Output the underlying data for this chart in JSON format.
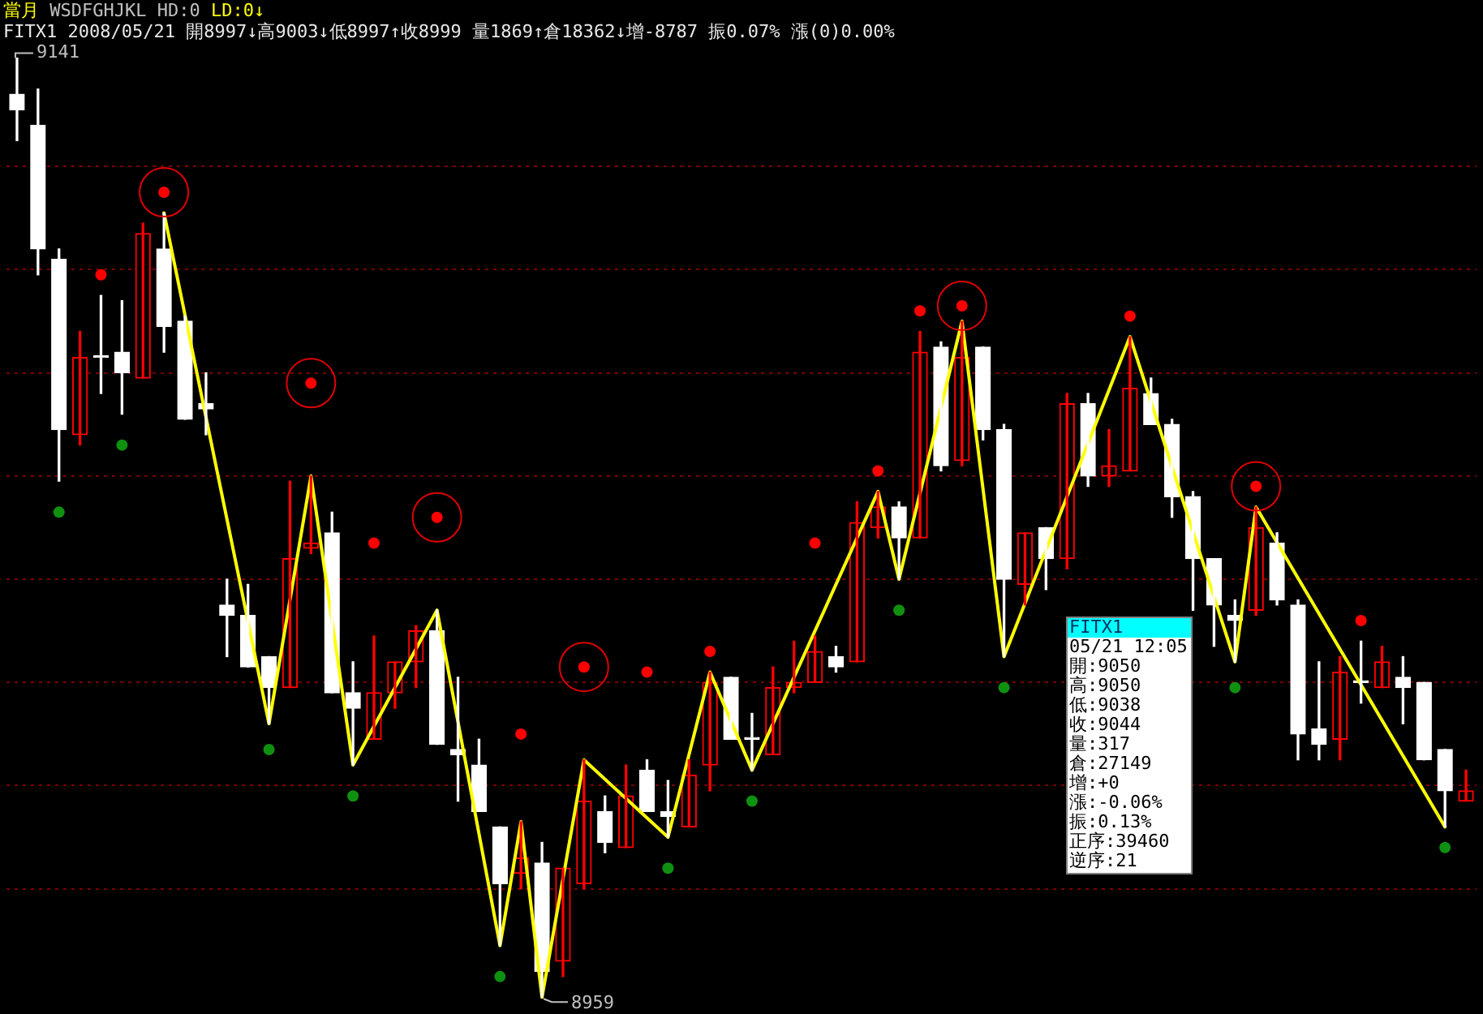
{
  "chart_data": {
    "type": "candlestick",
    "title": "當月 WSDFGHJKL HD:0 LD:0↓",
    "subtitle": "FITX1 2008/05/21 開8997↓高9003↓低8997↑收8999 量1869↑倉18362↓增-8787 振0.07% 漲(0)0.00%",
    "categories": [
      null,
      null,
      null,
      null,
      null,
      null,
      null,
      null,
      null,
      null,
      null,
      null,
      null,
      null,
      null,
      null,
      null,
      null,
      null,
      null,
      null,
      null,
      null,
      null,
      null,
      null,
      null,
      null,
      null,
      null,
      null,
      null,
      null,
      null,
      null,
      null,
      null,
      null,
      null,
      null,
      null,
      null,
      null,
      null,
      null,
      null,
      null,
      null,
      null,
      null,
      null,
      null,
      null,
      null,
      null,
      null,
      null,
      null,
      null,
      null,
      null,
      null,
      null,
      null,
      null,
      null,
      null,
      null,
      null,
      null
    ],
    "ohlc": [
      [
        9134,
        9141,
        9125,
        9131
      ],
      [
        9128,
        9135,
        9099,
        9104
      ],
      [
        9102,
        9104,
        9059,
        9069
      ],
      [
        9068,
        9088,
        9066,
        9083
      ],
      [
        9083,
        9095,
        9076,
        9083
      ],
      [
        9084,
        9094,
        9072,
        9080
      ],
      [
        9079,
        9109,
        9079,
        9107
      ],
      [
        9104,
        9111,
        9084,
        9089
      ],
      [
        9090,
        9091,
        9071,
        9071
      ],
      [
        9074,
        9080,
        9068,
        9073
      ],
      [
        9035,
        9040,
        9025,
        9033
      ],
      [
        9033,
        9039,
        9023,
        9023
      ],
      [
        9025,
        9025,
        9012,
        9019
      ],
      [
        9019,
        9059,
        9019,
        9044
      ],
      [
        9046,
        9060,
        9045,
        9047
      ],
      [
        9049,
        9053,
        9018,
        9018
      ],
      [
        9018,
        9024,
        9004,
        9015
      ],
      [
        9009,
        9029,
        9009,
        9018
      ],
      [
        9018,
        9024,
        9015,
        9024
      ],
      [
        9024,
        9031,
        9019,
        9030
      ],
      [
        9030,
        9034,
        9008,
        9008
      ],
      [
        9007,
        9021,
        8997,
        9006
      ],
      [
        9004,
        9009,
        8995,
        8995
      ],
      [
        8992,
        8992,
        8969,
        8981
      ],
      [
        8983,
        8993,
        8980,
        8986
      ],
      [
        8985,
        8989,
        8959,
        8964
      ],
      [
        8966,
        8984,
        8963,
        8984
      ],
      [
        8981,
        9005,
        8980,
        8997
      ],
      [
        8995,
        8998,
        8987,
        8989
      ],
      [
        8988,
        9004,
        8988,
        8998
      ],
      [
        9003,
        9005,
        8995,
        8995
      ],
      [
        8995,
        9001,
        8990,
        8994
      ],
      [
        8992,
        9005,
        8992,
        9002
      ],
      [
        9004,
        9022,
        8999,
        9020
      ],
      [
        9021,
        9021,
        9009,
        9009
      ],
      [
        9009,
        9014,
        9003,
        9009
      ],
      [
        9006,
        9023,
        9006,
        9019
      ],
      [
        9019,
        9028,
        9018,
        9020
      ],
      [
        9020,
        9029,
        9020,
        9026
      ],
      [
        9025,
        9027,
        9022,
        9023
      ],
      [
        9024,
        9055,
        9024,
        9051
      ],
      [
        9050,
        9057,
        9048,
        9054
      ],
      [
        9054,
        9055,
        9040,
        9048
      ],
      [
        9048,
        9088,
        9048,
        9084
      ],
      [
        9085,
        9086,
        9061,
        9062
      ],
      [
        9063,
        9090,
        9062,
        9083
      ],
      [
        9085,
        9085,
        9067,
        9069
      ],
      [
        9069,
        9070,
        9025,
        9040
      ],
      [
        9039,
        9049,
        9035,
        9049
      ],
      [
        9050,
        9050,
        9038,
        9044
      ],
      [
        9044,
        9076,
        9042,
        9074
      ],
      [
        9074,
        9076,
        9058,
        9060
      ],
      [
        9060,
        9069,
        9058,
        9062
      ],
      [
        9061,
        9087,
        9061,
        9077
      ],
      [
        9076,
        9079,
        9070,
        9070
      ],
      [
        9070,
        9071,
        9052,
        9056
      ],
      [
        9056,
        9057,
        9034,
        9044
      ],
      [
        9044,
        9044,
        9027,
        9035
      ],
      [
        9033,
        9036,
        9024,
        9032
      ],
      [
        9034,
        9054,
        9033,
        9050
      ],
      [
        9047,
        9049,
        9035,
        9036
      ],
      [
        9035,
        9036,
        9005,
        9010
      ],
      [
        9011,
        9024,
        9005,
        9008
      ],
      [
        9009,
        9025,
        9005,
        9022
      ],
      [
        9020,
        9028,
        9016,
        9020
      ],
      [
        9019,
        9027,
        9019,
        9024
      ],
      [
        9021,
        9025,
        9012,
        9019
      ],
      [
        9020,
        9020,
        9005,
        9005
      ],
      [
        9007,
        9007,
        8992,
        8999
      ],
      [
        8997,
        9003,
        8997,
        8999
      ]
    ],
    "series": [
      {
        "type": "line",
        "color": "#ffff00",
        "values": [
          null,
          null,
          null,
          null,
          null,
          null,
          null,
          9111,
          null,
          null,
          null,
          null,
          9012,
          null,
          9060,
          null,
          9004,
          null,
          null,
          null,
          9034,
          null,
          null,
          8969,
          8993,
          8959,
          null,
          9005,
          null,
          null,
          null,
          8990,
          null,
          9022,
          null,
          9003,
          null,
          null,
          null,
          null,
          null,
          9057,
          9040,
          null,
          null,
          9090,
          null,
          9025,
          null,
          null,
          null,
          null,
          null,
          9087,
          null,
          null,
          null,
          null,
          9024,
          9054,
          null,
          null,
          null,
          null,
          null,
          null,
          null,
          null,
          8992,
          null
        ]
      },
      {
        "type": "scatter",
        "color": "#ff0000",
        "marker": "circle",
        "values": [
          null,
          null,
          null,
          null,
          9099,
          null,
          null,
          9115,
          null,
          null,
          null,
          null,
          null,
          null,
          9078,
          null,
          null,
          9047,
          null,
          null,
          9052,
          null,
          null,
          null,
          9010,
          null,
          null,
          9023,
          null,
          null,
          9022,
          null,
          null,
          9026,
          null,
          null,
          null,
          null,
          9047,
          null,
          null,
          9061,
          null,
          9092,
          null,
          9093,
          null,
          null,
          null,
          null,
          null,
          null,
          null,
          9091,
          null,
          null,
          null,
          null,
          null,
          9058,
          null,
          null,
          null,
          null,
          9032,
          null,
          null,
          null,
          null,
          null
        ]
      },
      {
        "type": "scatter",
        "color": "#109010",
        "marker": "circle",
        "values": [
          null,
          null,
          9053,
          null,
          null,
          9066,
          null,
          null,
          null,
          null,
          null,
          null,
          9007,
          null,
          null,
          null,
          8998,
          null,
          null,
          null,
          null,
          null,
          null,
          8963,
          null,
          null,
          null,
          null,
          null,
          null,
          null,
          8984,
          null,
          null,
          null,
          8997,
          null,
          null,
          null,
          null,
          null,
          null,
          9034,
          null,
          null,
          null,
          null,
          9019,
          null,
          null,
          null,
          null,
          null,
          null,
          null,
          null,
          null,
          null,
          9019,
          null,
          null,
          null,
          null,
          null,
          null,
          null,
          null,
          null,
          8988,
          null
        ]
      },
      {
        "type": "bubble",
        "color": "#e00000",
        "values": [
          null,
          null,
          null,
          null,
          null,
          null,
          null,
          9115,
          null,
          null,
          null,
          null,
          null,
          null,
          9078,
          null,
          null,
          null,
          null,
          null,
          9052,
          null,
          null,
          null,
          null,
          null,
          null,
          9023,
          null,
          null,
          null,
          null,
          null,
          null,
          null,
          null,
          null,
          null,
          null,
          null,
          null,
          null,
          null,
          null,
          null,
          9093,
          null,
          null,
          null,
          null,
          null,
          null,
          null,
          null,
          null,
          null,
          null,
          null,
          null,
          9058,
          null,
          null,
          null,
          null,
          null,
          null,
          null,
          null,
          null,
          null
        ],
        "sizes": [
          null,
          null,
          null,
          null,
          null,
          null,
          null,
          1,
          null,
          null,
          null,
          null,
          null,
          null,
          1,
          null,
          null,
          null,
          null,
          null,
          1,
          null,
          null,
          null,
          null,
          null,
          null,
          1,
          null,
          null,
          null,
          null,
          null,
          null,
          null,
          null,
          null,
          null,
          null,
          null,
          null,
          null,
          null,
          null,
          null,
          1,
          null,
          null,
          null,
          null,
          null,
          null,
          null,
          null,
          null,
          null,
          null,
          null,
          null,
          1,
          null,
          null,
          null,
          null,
          null,
          null,
          null,
          null,
          null,
          null
        ]
      }
    ],
    "ylim": [
      8957,
      9151
    ],
    "yticks": [
      {
        "value": 9120,
        "label": null
      },
      {
        "value": 9100,
        "label": null
      },
      {
        "value": 9080,
        "label": null
      },
      {
        "value": 9060,
        "label": null
      },
      {
        "value": 9040,
        "label": null
      },
      {
        "value": 9020,
        "label": null
      },
      {
        "value": 9000,
        "label": null
      },
      {
        "value": 8980,
        "label": null
      }
    ],
    "grid": "y",
    "tick_labels": false,
    "annotations": [
      "9141",
      "8959",
      "FITX1",
      "05/21 12:05",
      "開:9050",
      "高:9050",
      "低:9038",
      "收:9044",
      "量:317",
      "倉:27149",
      "增:+0",
      "漲:-0.06%",
      "振:0.13%",
      "正序:39460",
      "逆序:21"
    ]
  }
}
